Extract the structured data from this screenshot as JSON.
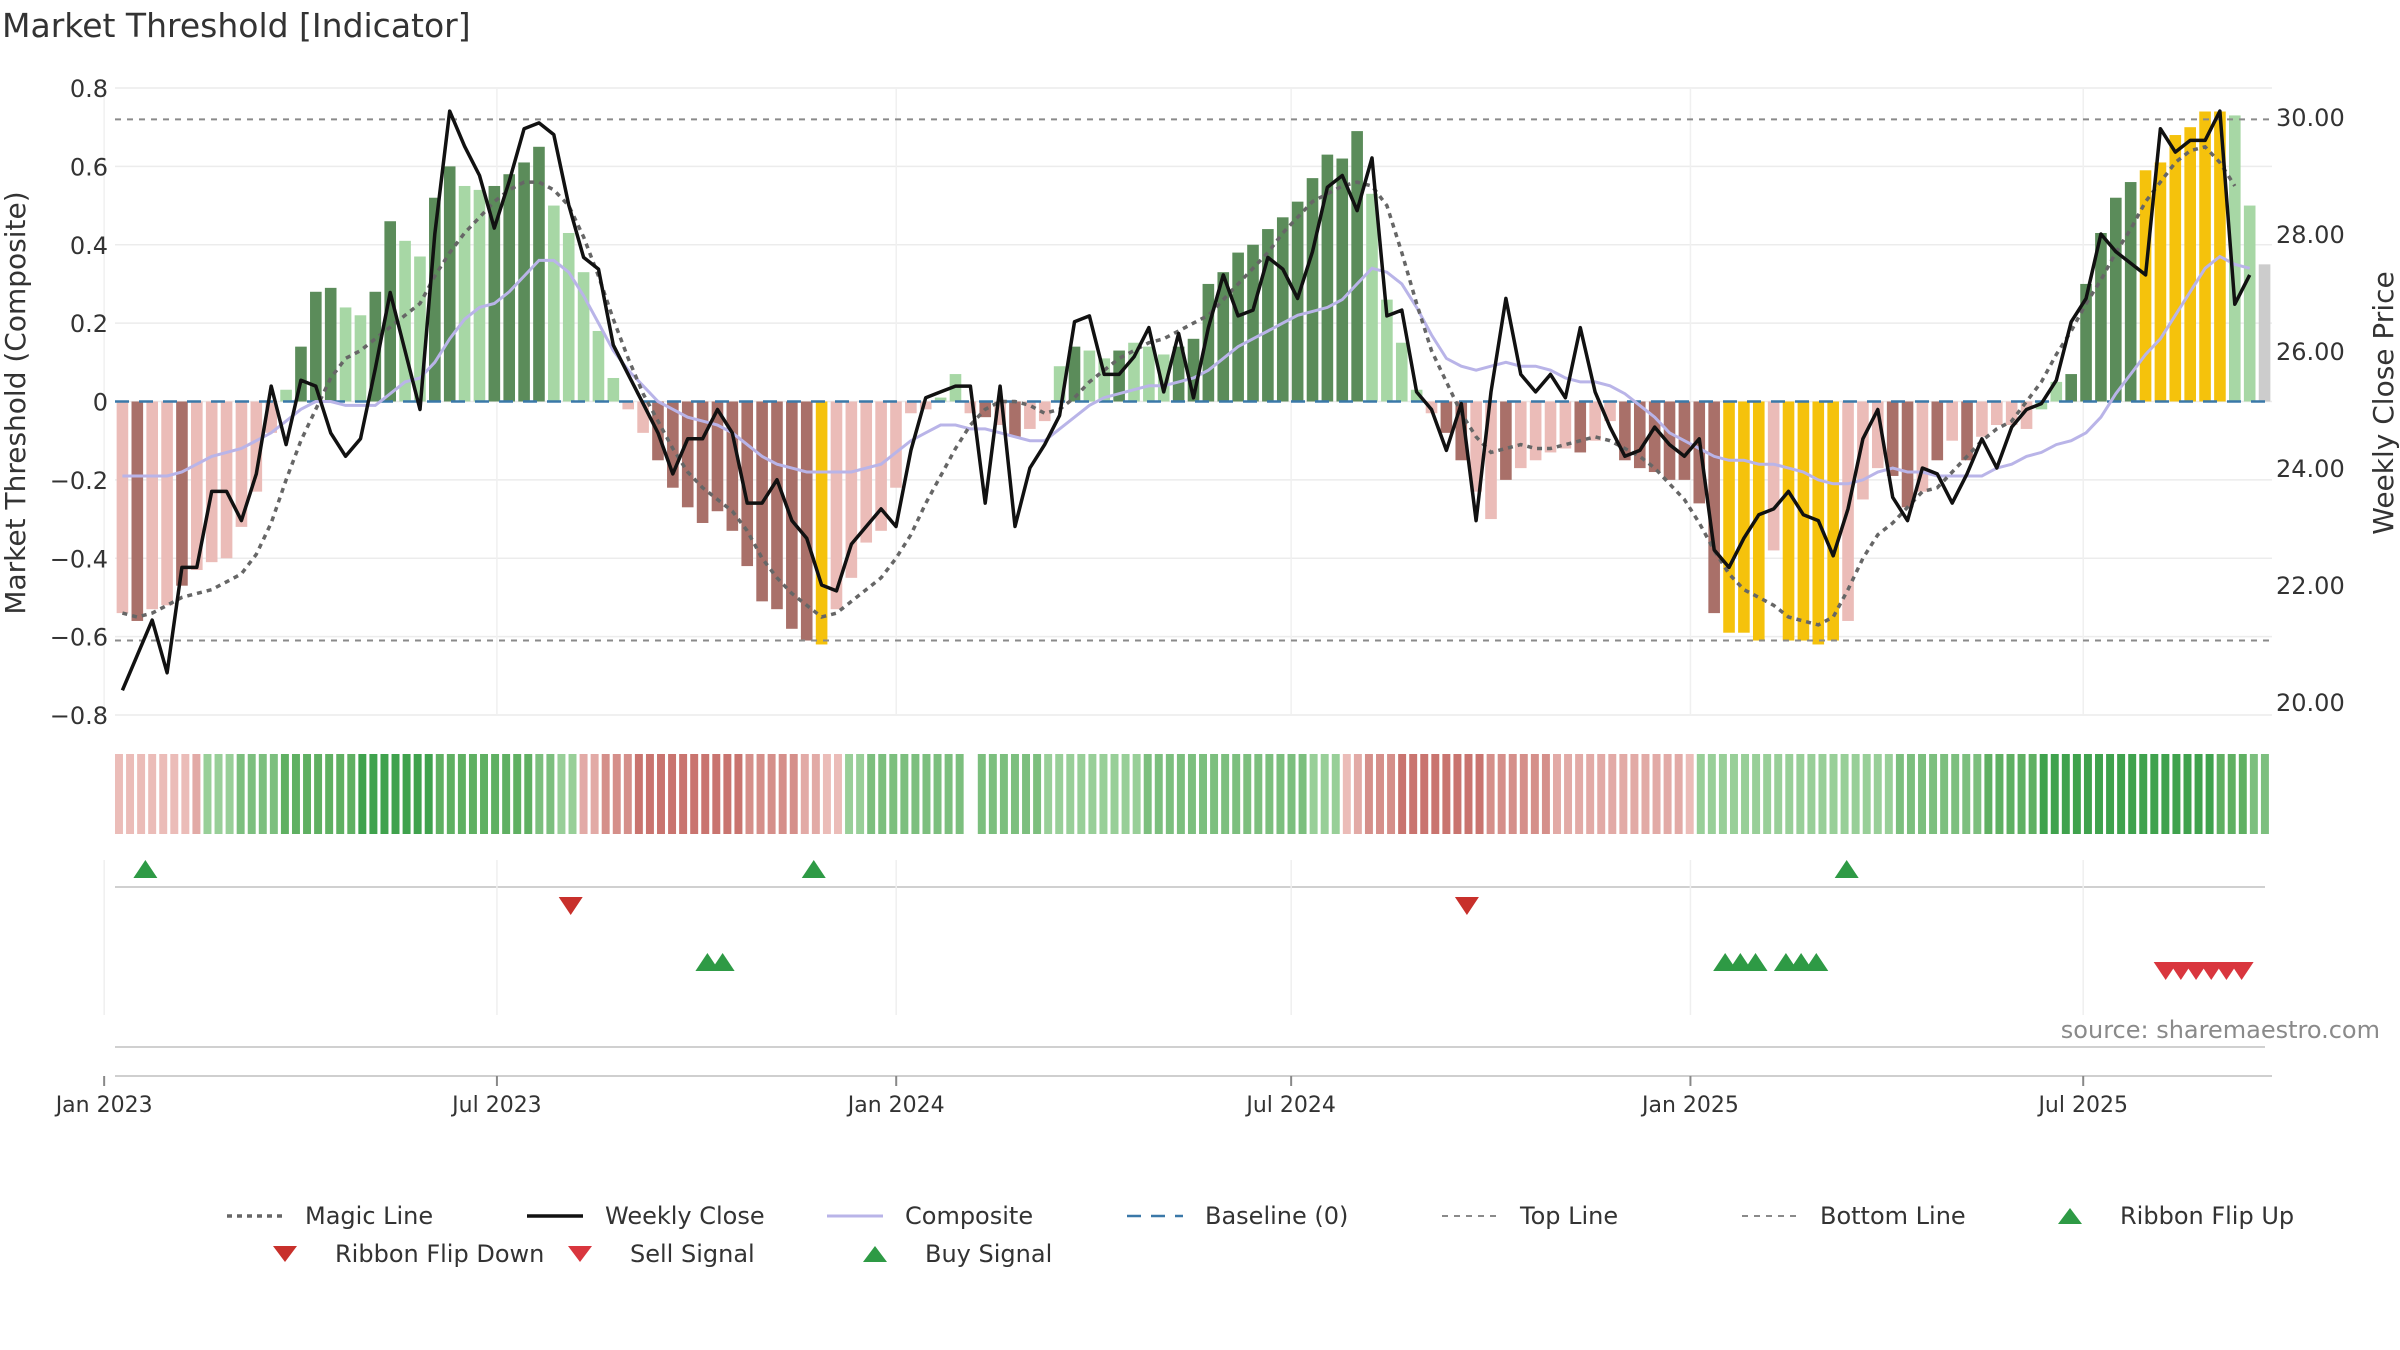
{
  "title": "Market Threshold [Indicator]",
  "source_note": "source: sharemaestro.com",
  "colors": {
    "bull_strong": "#5b8c5a",
    "bull_light": "#a7d7a5",
    "bear_strong": "#a97069",
    "bear_light": "#ebbcb8",
    "extreme": "#f5c20c",
    "close": "#111111",
    "composite": "#b9b4e8",
    "magic": "#666666",
    "baseline": "#3a78a8",
    "threshold": "#8a8a8a",
    "flip_up": "#2e9a45",
    "flip_down": "#c8302b",
    "buy": "#2e9a45",
    "sell": "#d9363e"
  },
  "chart_data": {
    "type": "bar",
    "title": "Market Threshold [Indicator]",
    "ylabel": "Market Threshold (Composite)",
    "y2label": "Weekly Close Price",
    "ylim": [
      -0.8,
      0.8
    ],
    "y2lim": [
      20,
      30.5
    ],
    "yticks": [
      "0.8",
      "0.6",
      "0.4",
      "0.2",
      "0",
      "−0.2",
      "−0.4",
      "−0.6",
      "−0.8"
    ],
    "y2ticks": [
      "30.00",
      "28.00",
      "26.00",
      "24.00",
      "22.00",
      "20.00"
    ],
    "xticks": [
      "Jan 2023",
      "Jul 2023",
      "Jan 2024",
      "Jul 2024",
      "Jan 2025",
      "Jul 2025"
    ],
    "x_start": "2023-01-06",
    "x_end": "2025-09-26",
    "top_line": 0.72,
    "bottom_line": -0.61,
    "grid": true,
    "legend_position": "bottom",
    "composite_bars": [
      -0.54,
      -0.56,
      -0.53,
      -0.52,
      -0.47,
      -0.43,
      -0.41,
      -0.4,
      -0.32,
      -0.23,
      -0.08,
      0.03,
      0.14,
      0.28,
      0.29,
      0.24,
      0.22,
      0.28,
      0.46,
      0.41,
      0.37,
      0.52,
      0.6,
      0.55,
      0.54,
      0.55,
      0.58,
      0.61,
      0.65,
      0.5,
      0.43,
      0.33,
      0.18,
      0.06,
      -0.02,
      -0.08,
      -0.15,
      -0.22,
      -0.27,
      -0.31,
      -0.28,
      -0.33,
      -0.42,
      -0.51,
      -0.53,
      -0.58,
      -0.61,
      -0.62,
      -0.53,
      -0.45,
      -0.36,
      -0.33,
      -0.22,
      -0.03,
      -0.02,
      0.01,
      0.07,
      -0.03,
      -0.04,
      -0.06,
      -0.09,
      -0.07,
      -0.05,
      0.09,
      0.14,
      0.13,
      0.11,
      0.13,
      0.15,
      0.14,
      0.12,
      0.14,
      0.16,
      0.3,
      0.33,
      0.38,
      0.4,
      0.44,
      0.47,
      0.51,
      0.57,
      0.63,
      0.62,
      0.69,
      0.53,
      0.26,
      0.15,
      0.03,
      -0.03,
      -0.08,
      -0.15,
      -0.23,
      -0.3,
      -0.2,
      -0.17,
      -0.15,
      -0.13,
      -0.12,
      -0.13,
      -0.1,
      -0.05,
      -0.15,
      -0.17,
      -0.18,
      -0.2,
      -0.2,
      -0.26,
      -0.54,
      -0.59,
      -0.59,
      -0.61,
      -0.38,
      -0.61,
      -0.61,
      -0.62,
      -0.61,
      -0.56,
      -0.25,
      -0.17,
      -0.19,
      -0.27,
      -0.23,
      -0.15,
      -0.1,
      -0.15,
      -0.09,
      -0.06,
      -0.06,
      -0.07,
      -0.02,
      0.05,
      0.07,
      0.3,
      0.43,
      0.52,
      0.56,
      0.59,
      0.61,
      0.68,
      0.7,
      0.74,
      0.74,
      0.73,
      0.5,
      0.35
    ],
    "bar_class": [
      "bear_light",
      "bear_strong",
      "bear_light",
      "bear_light",
      "bear_strong",
      "bear_light",
      "bear_light",
      "bear_light",
      "bear_light",
      "bear_light",
      "bear_light",
      "bull_light",
      "bull_strong",
      "bull_strong",
      "bull_strong",
      "bull_light",
      "bull_light",
      "bull_strong",
      "bull_strong",
      "bull_light",
      "bull_light",
      "bull_strong",
      "bull_strong",
      "bull_light",
      "bull_light",
      "bull_strong",
      "bull_strong",
      "bull_strong",
      "bull_strong",
      "bull_light",
      "bull_light",
      "bull_light",
      "bull_light",
      "bull_light",
      "bear_light",
      "bear_light",
      "bear_strong",
      "bear_strong",
      "bear_strong",
      "bear_strong",
      "bear_strong",
      "bear_strong",
      "bear_strong",
      "bear_strong",
      "bear_strong",
      "bear_strong",
      "bear_strong",
      "extreme",
      "bear_light",
      "bear_light",
      "bear_light",
      "bear_light",
      "bear_light",
      "bear_light",
      "bear_light",
      "bull_light",
      "bull_light",
      "bear_light",
      "bear_strong",
      "bear_light",
      "bear_strong",
      "bear_light",
      "bear_light",
      "bull_light",
      "bull_strong",
      "bull_light",
      "bull_light",
      "bull_strong",
      "bull_light",
      "bull_light",
      "bull_light",
      "bull_strong",
      "bull_strong",
      "bull_strong",
      "bull_strong",
      "bull_strong",
      "bull_strong",
      "bull_strong",
      "bull_strong",
      "bull_strong",
      "bull_strong",
      "bull_strong",
      "bull_strong",
      "bull_strong",
      "bull_light",
      "bull_light",
      "bull_light",
      "bull_light",
      "bear_light",
      "bear_strong",
      "bear_strong",
      "bear_light",
      "bear_light",
      "bear_strong",
      "bear_light",
      "bear_light",
      "bear_light",
      "bear_light",
      "bear_strong",
      "bear_light",
      "bear_light",
      "bear_strong",
      "bear_strong",
      "bear_strong",
      "bear_strong",
      "bear_strong",
      "bear_strong",
      "bear_strong",
      "extreme",
      "extreme",
      "extreme",
      "bear_light",
      "extreme",
      "extreme",
      "extreme",
      "extreme",
      "bear_light",
      "bear_light",
      "bear_light",
      "bear_strong",
      "bear_strong",
      "bear_light",
      "bear_strong",
      "bear_light",
      "bear_strong",
      "bear_light",
      "bear_light",
      "bear_light",
      "bear_light",
      "bull_light",
      "bull_light",
      "bull_strong",
      "bull_strong",
      "bull_strong",
      "bull_strong",
      "bull_strong",
      "extreme",
      "extreme",
      "extreme",
      "extreme",
      "extreme",
      "extreme",
      "bull_light",
      "bull_light"
    ],
    "weekly_close": [
      20.2,
      20.8,
      21.4,
      20.5,
      22.3,
      22.3,
      23.6,
      23.6,
      23.1,
      23.9,
      25.4,
      24.4,
      25.5,
      25.4,
      24.6,
      24.2,
      24.5,
      25.7,
      27.0,
      26.0,
      25.0,
      28.0,
      30.1,
      29.5,
      29.0,
      28.1,
      28.9,
      29.8,
      29.9,
      29.7,
      28.5,
      27.6,
      27.4,
      26.1,
      25.6,
      25.1,
      24.6,
      23.9,
      24.5,
      24.5,
      25.0,
      24.6,
      23.4,
      23.4,
      23.8,
      23.1,
      22.8,
      22.0,
      21.9,
      22.7,
      23.0,
      23.3,
      23.0,
      24.3,
      25.2,
      25.3,
      25.4,
      25.4,
      23.4,
      25.4,
      23.0,
      24.0,
      24.4,
      24.9,
      26.5,
      26.6,
      25.6,
      25.6,
      25.9,
      26.4,
      25.3,
      26.3,
      25.2,
      26.4,
      27.3,
      26.6,
      26.7,
      27.6,
      27.4,
      26.9,
      27.7,
      28.8,
      29.0,
      28.4,
      29.3,
      26.6,
      26.7,
      25.3,
      25.0,
      24.3,
      25.1,
      23.1,
      25.3,
      26.9,
      25.6,
      25.3,
      25.6,
      25.2,
      26.4,
      25.3,
      24.7,
      24.2,
      24.3,
      24.7,
      24.4,
      24.2,
      24.5,
      22.6,
      22.3,
      22.8,
      23.2,
      23.3,
      23.6,
      23.2,
      23.1,
      22.5,
      23.3,
      24.5,
      25.0,
      23.5,
      23.1,
      24.0,
      23.9,
      23.4,
      23.9,
      24.5,
      24.0,
      24.7,
      25.0,
      25.1,
      25.5,
      26.5,
      26.9,
      28.0,
      27.7,
      27.5,
      27.3,
      29.8,
      29.4,
      29.6,
      29.6,
      30.1,
      26.8,
      27.3
    ],
    "composite_line": [
      -0.19,
      -0.19,
      -0.19,
      -0.19,
      -0.18,
      -0.16,
      -0.14,
      -0.13,
      -0.12,
      -0.1,
      -0.08,
      -0.05,
      -0.02,
      0,
      0,
      -0.01,
      -0.01,
      -0.01,
      0.02,
      0.05,
      0.06,
      0.1,
      0.16,
      0.21,
      0.24,
      0.25,
      0.28,
      0.32,
      0.36,
      0.36,
      0.33,
      0.27,
      0.2,
      0.13,
      0.08,
      0.04,
      0,
      -0.02,
      -0.04,
      -0.05,
      -0.06,
      -0.08,
      -0.11,
      -0.14,
      -0.16,
      -0.17,
      -0.18,
      -0.18,
      -0.18,
      -0.18,
      -0.17,
      -0.16,
      -0.13,
      -0.1,
      -0.08,
      -0.06,
      -0.06,
      -0.07,
      -0.07,
      -0.08,
      -0.09,
      -0.1,
      -0.1,
      -0.07,
      -0.04,
      -0.01,
      0.01,
      0.02,
      0.03,
      0.04,
      0.04,
      0.05,
      0.06,
      0.08,
      0.11,
      0.14,
      0.16,
      0.18,
      0.2,
      0.22,
      0.23,
      0.24,
      0.26,
      0.3,
      0.34,
      0.33,
      0.3,
      0.24,
      0.17,
      0.11,
      0.09,
      0.08,
      0.09,
      0.1,
      0.09,
      0.09,
      0.08,
      0.06,
      0.05,
      0.05,
      0.04,
      0.02,
      -0.01,
      -0.04,
      -0.08,
      -0.1,
      -0.12,
      -0.14,
      -0.15,
      -0.15,
      -0.16,
      -0.16,
      -0.17,
      -0.18,
      -0.2,
      -0.21,
      -0.21,
      -0.2,
      -0.18,
      -0.17,
      -0.18,
      -0.18,
      -0.19,
      -0.19,
      -0.19,
      -0.19,
      -0.17,
      -0.16,
      -0.14,
      -0.13,
      -0.11,
      -0.1,
      -0.08,
      -0.04,
      0.02,
      0.07,
      0.12,
      0.16,
      0.22,
      0.28,
      0.34,
      0.37,
      0.35,
      0.34
    ],
    "magic_line": [
      -0.54,
      -0.55,
      -0.54,
      -0.52,
      -0.5,
      -0.49,
      -0.48,
      -0.46,
      -0.44,
      -0.39,
      -0.31,
      -0.2,
      -0.1,
      -0.02,
      0.06,
      0.11,
      0.13,
      0.16,
      0.19,
      0.22,
      0.25,
      0.32,
      0.38,
      0.43,
      0.47,
      0.51,
      0.54,
      0.56,
      0.56,
      0.54,
      0.5,
      0.42,
      0.32,
      0.21,
      0.11,
      0.02,
      -0.05,
      -0.12,
      -0.18,
      -0.22,
      -0.25,
      -0.28,
      -0.33,
      -0.4,
      -0.45,
      -0.49,
      -0.52,
      -0.55,
      -0.54,
      -0.51,
      -0.48,
      -0.45,
      -0.4,
      -0.34,
      -0.26,
      -0.19,
      -0.12,
      -0.06,
      -0.02,
      0,
      0,
      -0.01,
      -0.03,
      -0.02,
      0.01,
      0.05,
      0.08,
      0.11,
      0.13,
      0.15,
      0.16,
      0.18,
      0.2,
      0.22,
      0.26,
      0.3,
      0.34,
      0.38,
      0.43,
      0.47,
      0.51,
      0.53,
      0.55,
      0.56,
      0.55,
      0.5,
      0.38,
      0.25,
      0.13,
      0.05,
      -0.03,
      -0.09,
      -0.13,
      -0.12,
      -0.11,
      -0.12,
      -0.12,
      -0.11,
      -0.1,
      -0.09,
      -0.1,
      -0.12,
      -0.14,
      -0.17,
      -0.21,
      -0.25,
      -0.31,
      -0.38,
      -0.44,
      -0.48,
      -0.5,
      -0.52,
      -0.55,
      -0.56,
      -0.57,
      -0.55,
      -0.48,
      -0.4,
      -0.34,
      -0.31,
      -0.27,
      -0.23,
      -0.22,
      -0.18,
      -0.14,
      -0.1,
      -0.07,
      -0.05,
      0,
      0.05,
      0.12,
      0.18,
      0.25,
      0.31,
      0.38,
      0.44,
      0.51,
      0.56,
      0.61,
      0.64,
      0.65,
      0.61,
      0.55
    ],
    "ribbon_levels": [
      -1,
      -1,
      -1,
      -1,
      -1,
      -1,
      -1,
      -2,
      2,
      2,
      2,
      3,
      3,
      3,
      3,
      4,
      4,
      4,
      4,
      4,
      4,
      4,
      5,
      5,
      5,
      5,
      5,
      5,
      5,
      4,
      4,
      4,
      4,
      4,
      4,
      4,
      4,
      4,
      3,
      3,
      2,
      2,
      -2,
      -2,
      -3,
      -3,
      -3,
      -4,
      -4,
      -4,
      -4,
      -4,
      -4,
      -4,
      -4,
      -4,
      -4,
      -3,
      -3,
      -3,
      -3,
      -3,
      -2,
      -2,
      -1,
      -1,
      2,
      2,
      3,
      3,
      3,
      3,
      3,
      3,
      3,
      3,
      3,
      null,
      3,
      3,
      3,
      3,
      3,
      3,
      2,
      2,
      2,
      2,
      2,
      2,
      2,
      2,
      2,
      3,
      3,
      3,
      3,
      3,
      3,
      3,
      3,
      3,
      3,
      3,
      3,
      3,
      3,
      3,
      2,
      2,
      2,
      -1,
      -2,
      -3,
      -3,
      -3,
      -4,
      -4,
      -4,
      -4,
      -4,
      -4,
      -4,
      -4,
      -3,
      -3,
      -3,
      -3,
      -3,
      -3,
      -2,
      -2,
      -2,
      -2,
      -2,
      -2,
      -2,
      -2,
      -2,
      -2,
      -2,
      -2,
      -1,
      2,
      2,
      2,
      2,
      2,
      2,
      2,
      2,
      2,
      2,
      2,
      2,
      2,
      2,
      2,
      2,
      2,
      2,
      3,
      3,
      3,
      3,
      3,
      3,
      3,
      3,
      4,
      4,
      4,
      4,
      4,
      5,
      5,
      5,
      5,
      5,
      5,
      5,
      5,
      5,
      5,
      5,
      5,
      5,
      5,
      5,
      5,
      4,
      4,
      4,
      3,
      3
    ],
    "ribbon_flip_up": [
      "2023-01-20",
      "2023-11-24",
      "2025-03-14"
    ],
    "ribbon_flip_down": [
      "2023-08-04",
      "2024-09-20"
    ],
    "buy_signals": [
      "2023-10-06",
      "2023-10-13",
      "2025-01-17",
      "2025-01-24",
      "2025-01-31",
      "2025-02-14",
      "2025-02-21",
      "2025-02-28"
    ],
    "sell_signals": [
      "2025-08-08",
      "2025-08-15",
      "2025-08-22",
      "2025-08-29",
      "2025-09-05",
      "2025-09-12"
    ]
  },
  "legend": [
    {
      "key": "magic",
      "label": "Magic Line"
    },
    {
      "key": "close",
      "label": "Weekly Close"
    },
    {
      "key": "composite",
      "label": "Composite"
    },
    {
      "key": "baseline",
      "label": "Baseline (0)"
    },
    {
      "key": "top",
      "label": "Top Line"
    },
    {
      "key": "bottom",
      "label": "Bottom Line"
    },
    {
      "key": "flip_up",
      "label": "Ribbon Flip Up"
    },
    {
      "key": "flip_down",
      "label": "Ribbon Flip Down"
    },
    {
      "key": "sell",
      "label": "Sell Signal"
    },
    {
      "key": "buy",
      "label": "Buy Signal"
    }
  ]
}
